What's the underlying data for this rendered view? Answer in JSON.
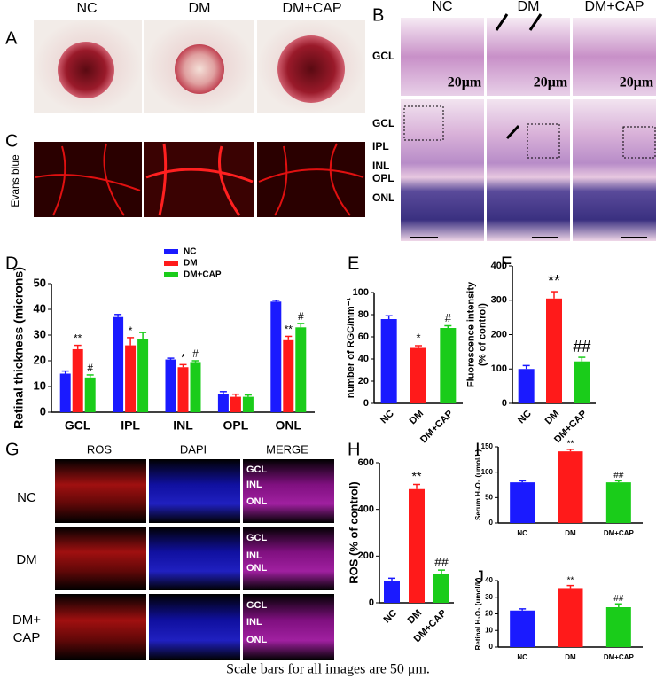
{
  "panel_labels": [
    "A",
    "B",
    "C",
    "D",
    "E",
    "F",
    "G",
    "H",
    "I",
    "J"
  ],
  "panel_A": {
    "headers": [
      "NC",
      "DM",
      "DM+CAP"
    ]
  },
  "panel_B": {
    "headers": [
      "NC",
      "DM",
      "DM+CAP"
    ],
    "layer_labels": [
      "GCL",
      "GCL",
      "IPL",
      "INL",
      "OPL",
      "ONL"
    ],
    "scale_labels": [
      "20μm",
      "20μm",
      "20μm"
    ]
  },
  "panel_C": {
    "label": "Evans blue"
  },
  "panel_G": {
    "columns": [
      "ROS",
      "DAPI",
      "MERGE"
    ],
    "rows": [
      "NC",
      "DM",
      "DM+",
      "CAP"
    ],
    "merge_labels": [
      "GCL",
      "INL",
      "ONL"
    ]
  },
  "caption": "Scale bars for all images are 50 μm.",
  "chart_data": [
    {
      "type": "bar",
      "y_label": [
        "Retinal thickness (microns)"
      ],
      "categories": [
        "GCL",
        "IPL",
        "INL",
        "OPL",
        "ONL"
      ],
      "series": [
        {
          "name": "NC",
          "color": "#1a1aff",
          "values": [
            15,
            37,
            20.5,
            7,
            43
          ],
          "errors": [
            1,
            1,
            0.5,
            1,
            0.5
          ],
          "annotations": [
            null,
            null,
            null,
            null,
            null
          ]
        },
        {
          "name": "DM",
          "color": "#ff1a1a",
          "values": [
            24.5,
            26,
            17.5,
            6,
            28
          ],
          "errors": [
            1.5,
            3,
            1,
            1,
            1.5
          ],
          "annotations": [
            "**",
            "*",
            "*",
            null,
            "**"
          ]
        },
        {
          "name": "DM+CAP",
          "color": "#1acc1a",
          "values": [
            13.5,
            28.5,
            19.5,
            6,
            33
          ],
          "errors": [
            1,
            2.5,
            0.5,
            0.7,
            1.5
          ],
          "annotations": [
            "#",
            null,
            "#",
            null,
            "#"
          ]
        }
      ],
      "ylim": [
        0,
        50
      ],
      "yticks": [
        0,
        10,
        20,
        30,
        40,
        50
      ],
      "legend": "top"
    },
    {
      "type": "bar",
      "y_label": [
        "number of RGC/mm⁻¹"
      ],
      "categories": [
        "NC",
        "DM",
        "DM+CAP"
      ],
      "colors": [
        "#1a1aff",
        "#ff1a1a",
        "#1acc1a"
      ],
      "values": [
        76,
        50,
        68
      ],
      "errors": [
        3,
        2,
        2
      ],
      "annotations": [
        null,
        "*",
        "#"
      ],
      "ylim": [
        0,
        100
      ],
      "yticks": [
        0,
        20,
        40,
        60,
        80,
        100
      ]
    },
    {
      "type": "bar",
      "y_label": [
        "Fluorescence intensity",
        "(% of control)"
      ],
      "categories": [
        "NC",
        "DM",
        "DM+CAP"
      ],
      "colors": [
        "#1a1aff",
        "#ff1a1a",
        "#1acc1a"
      ],
      "values": [
        100,
        305,
        122
      ],
      "errors": [
        10,
        20,
        12
      ],
      "annotations": [
        null,
        "**",
        "##"
      ],
      "ylim": [
        0,
        400
      ],
      "yticks": [
        0,
        100,
        200,
        300,
        400
      ]
    },
    {
      "type": "bar",
      "y_label": [
        "ROS (% of control)"
      ],
      "categories": [
        "NC",
        "DM",
        "DM+CAP"
      ],
      "colors": [
        "#1a1aff",
        "#ff1a1a",
        "#1acc1a"
      ],
      "values": [
        95,
        487,
        125
      ],
      "errors": [
        10,
        20,
        15
      ],
      "annotations": [
        null,
        "**",
        "##"
      ],
      "ylim": [
        0,
        600
      ],
      "yticks": [
        0,
        200,
        400,
        600
      ]
    },
    {
      "type": "bar",
      "y_label": [
        "Serum H₂O₂ (umol/L)"
      ],
      "categories": [
        "NC",
        "DM",
        "DM+CAP"
      ],
      "colors": [
        "#1a1aff",
        "#ff1a1a",
        "#1acc1a"
      ],
      "values": [
        80,
        141,
        80
      ],
      "errors": [
        3,
        4,
        3
      ],
      "annotations": [
        null,
        "**",
        "##"
      ],
      "ylim": [
        0,
        150
      ],
      "yticks": [
        0,
        50,
        100,
        150
      ]
    },
    {
      "type": "bar",
      "y_label": [
        "Retinal H₂O₂ (umol/L)"
      ],
      "categories": [
        "NC",
        "DM",
        "DM+CAP"
      ],
      "colors": [
        "#1a1aff",
        "#ff1a1a",
        "#1acc1a"
      ],
      "values": [
        22,
        35.5,
        24
      ],
      "errors": [
        1,
        1.5,
        2
      ],
      "annotations": [
        null,
        "**",
        "##"
      ],
      "ylim": [
        0,
        40
      ],
      "yticks": [
        0,
        10,
        20,
        30,
        40
      ]
    }
  ]
}
